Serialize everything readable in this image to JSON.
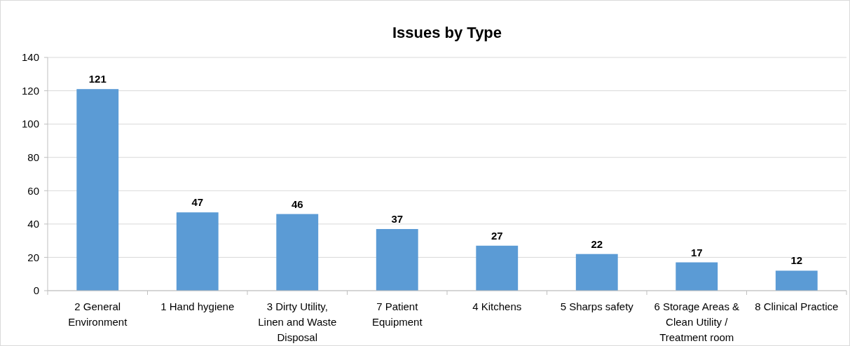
{
  "chart_data": {
    "type": "bar",
    "title": "Issues by Type",
    "categories": [
      "2 General Environment",
      "1 Hand hygiene",
      "3 Dirty Utility, Linen and Waste Disposal",
      "7 Patient Equipment",
      "4 Kitchens",
      "5 Sharps safety",
      "6 Storage Areas & Clean Utility / Treatment room",
      "8 Clinical Practice"
    ],
    "values": [
      121,
      47,
      46,
      37,
      27,
      22,
      17,
      12
    ],
    "color": "#5b9bd5",
    "ylim": [
      0,
      140
    ],
    "yticks": [
      0,
      20,
      40,
      60,
      80,
      100,
      120,
      140
    ],
    "grid": "y",
    "data_labels": true
  }
}
